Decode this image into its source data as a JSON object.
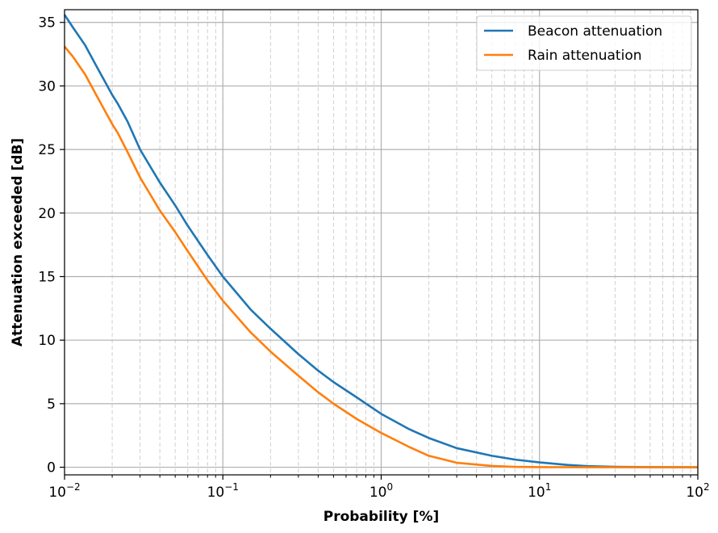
{
  "chart_data": {
    "type": "line",
    "title": "",
    "xlabel": "Probability [%]",
    "ylabel": "Attenuation exceeded [dB]",
    "xscale": "log",
    "xlim": [
      0.01,
      100
    ],
    "ylim": [
      -0.6,
      36
    ],
    "grid": "major solid, minor dashed on x",
    "legend_position": "upper right",
    "xticks": [
      {
        "value": 0.01,
        "base": "10",
        "exp": "−2"
      },
      {
        "value": 0.1,
        "base": "10",
        "exp": "−1"
      },
      {
        "value": 1,
        "base": "10",
        "exp": "0"
      },
      {
        "value": 10,
        "base": "10",
        "exp": "1"
      },
      {
        "value": 100,
        "base": "10",
        "exp": "2"
      }
    ],
    "yticks": [
      {
        "value": 0,
        "label": "0"
      },
      {
        "value": 5,
        "label": "5"
      },
      {
        "value": 10,
        "label": "10"
      },
      {
        "value": 15,
        "label": "15"
      },
      {
        "value": 20,
        "label": "20"
      },
      {
        "value": 25,
        "label": "25"
      },
      {
        "value": 30,
        "label": "30"
      },
      {
        "value": 35,
        "label": "35"
      }
    ],
    "series": [
      {
        "name": "Beacon attenuation",
        "color": "#1f77b4",
        "points": [
          [
            0.01,
            35.6
          ],
          [
            0.0113,
            34.6
          ],
          [
            0.0135,
            33.2
          ],
          [
            0.016,
            31.5
          ],
          [
            0.02,
            29.3
          ],
          [
            0.0217,
            28.6
          ],
          [
            0.025,
            27.2
          ],
          [
            0.03,
            25.0
          ],
          [
            0.04,
            22.4
          ],
          [
            0.05,
            20.6
          ],
          [
            0.06,
            19.0
          ],
          [
            0.08,
            16.7
          ],
          [
            0.1,
            15.0
          ],
          [
            0.15,
            12.4
          ],
          [
            0.2,
            10.9
          ],
          [
            0.3,
            8.9
          ],
          [
            0.4,
            7.6
          ],
          [
            0.5,
            6.7
          ],
          [
            0.7,
            5.5
          ],
          [
            1.0,
            4.2
          ],
          [
            1.5,
            3.0
          ],
          [
            2.0,
            2.3
          ],
          [
            3.0,
            1.5
          ],
          [
            5.0,
            0.9
          ],
          [
            7.0,
            0.6
          ],
          [
            10.0,
            0.38
          ],
          [
            15.0,
            0.18
          ],
          [
            20.0,
            0.09
          ],
          [
            30.0,
            0.03
          ],
          [
            50.0,
            0.01
          ],
          [
            100.0,
            0.0
          ]
        ]
      },
      {
        "name": "Rain attenuation",
        "color": "#ff7f0e",
        "points": [
          [
            0.01,
            33.1
          ],
          [
            0.0113,
            32.3
          ],
          [
            0.0135,
            30.9
          ],
          [
            0.016,
            29.2
          ],
          [
            0.02,
            27.0
          ],
          [
            0.0217,
            26.3
          ],
          [
            0.025,
            24.8
          ],
          [
            0.03,
            22.8
          ],
          [
            0.04,
            20.2
          ],
          [
            0.05,
            18.5
          ],
          [
            0.06,
            17.0
          ],
          [
            0.08,
            14.7
          ],
          [
            0.1,
            13.1
          ],
          [
            0.15,
            10.6
          ],
          [
            0.2,
            9.1
          ],
          [
            0.3,
            7.2
          ],
          [
            0.4,
            5.9
          ],
          [
            0.5,
            5.0
          ],
          [
            0.7,
            3.8
          ],
          [
            1.0,
            2.7
          ],
          [
            1.5,
            1.6
          ],
          [
            2.0,
            0.9
          ],
          [
            3.0,
            0.35
          ],
          [
            5.0,
            0.1
          ],
          [
            7.0,
            0.03
          ],
          [
            10.0,
            0.01
          ],
          [
            20.0,
            0.0
          ],
          [
            100.0,
            0.0
          ]
        ]
      }
    ]
  }
}
